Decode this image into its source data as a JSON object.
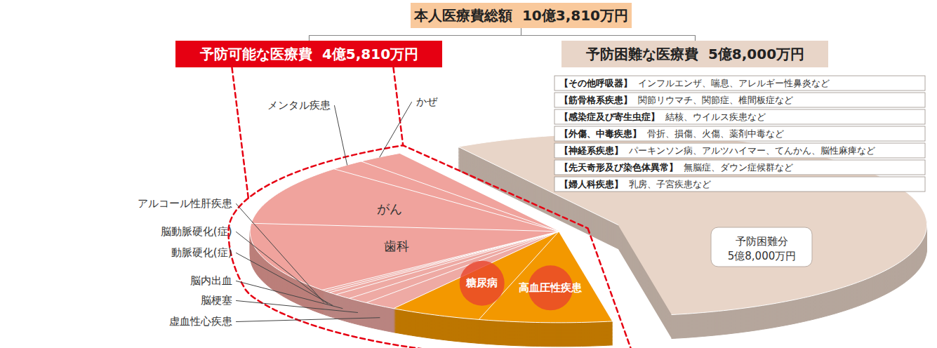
{
  "chart_data": {
    "type": "pie",
    "title": "本人医療費総額",
    "total": 103810,
    "total_label": "10億3,810万円",
    "groups": [
      {
        "name": "予防可能な医療費",
        "value": 45810,
        "value_label": "4億5,810万円",
        "color": "#e60012"
      },
      {
        "name": "予防困難な医療費",
        "value": 58000,
        "value_label": "5億8,000万円",
        "slice_label": "予防困難分",
        "color": "#e8d5c8"
      }
    ],
    "categories": [
      "高血圧性疾患",
      "糖尿病",
      "虚血性心疾患",
      "脳梗塞",
      "脳内出血",
      "動脈硬化(症)",
      "脳動脈硬化(症)",
      "アルコール性肝疾患",
      "歯科",
      "がん",
      "メンタル疾患",
      "かぜ"
    ],
    "values": [
      7210,
      5000,
      1800,
      1200,
      1000,
      500,
      300,
      300,
      13000,
      11000,
      2000,
      2500
    ],
    "colors": [
      "#f39800",
      "#f39800",
      "#eeaaa4",
      "#eeaaa4",
      "#eeaaa4",
      "#eeaaa4",
      "#eeaaa4",
      "#eeaaa4",
      "#f0a39d",
      "#f0a39d",
      "#f0a39d",
      "#f0a39d"
    ],
    "hard_to_prevent_examples": [
      {
        "category": "【その他呼吸器】",
        "examples": "インフルエンザ、喘息、アレルギー性鼻炎など"
      },
      {
        "category": "【筋骨格系疾患】",
        "examples": "関節リウマチ、関節症、椎間板症など"
      },
      {
        "category": "【感染症及び寄生虫症】",
        "examples": "結核、ウイルス疾患など"
      },
      {
        "category": "【外傷、中毒疾患】",
        "examples": "骨折、損傷、火傷、薬剤中毒など"
      },
      {
        "category": "【神経系疾患】",
        "examples": "パーキンソン病、アルツハイマー、てんかん、脳性麻痺など"
      },
      {
        "category": "【先天奇形及び染色体異常】",
        "examples": "無脳症、ダウン症候群など"
      },
      {
        "category": "【婦人科疾患】",
        "examples": "乳房、子宮疾患など"
      }
    ]
  }
}
